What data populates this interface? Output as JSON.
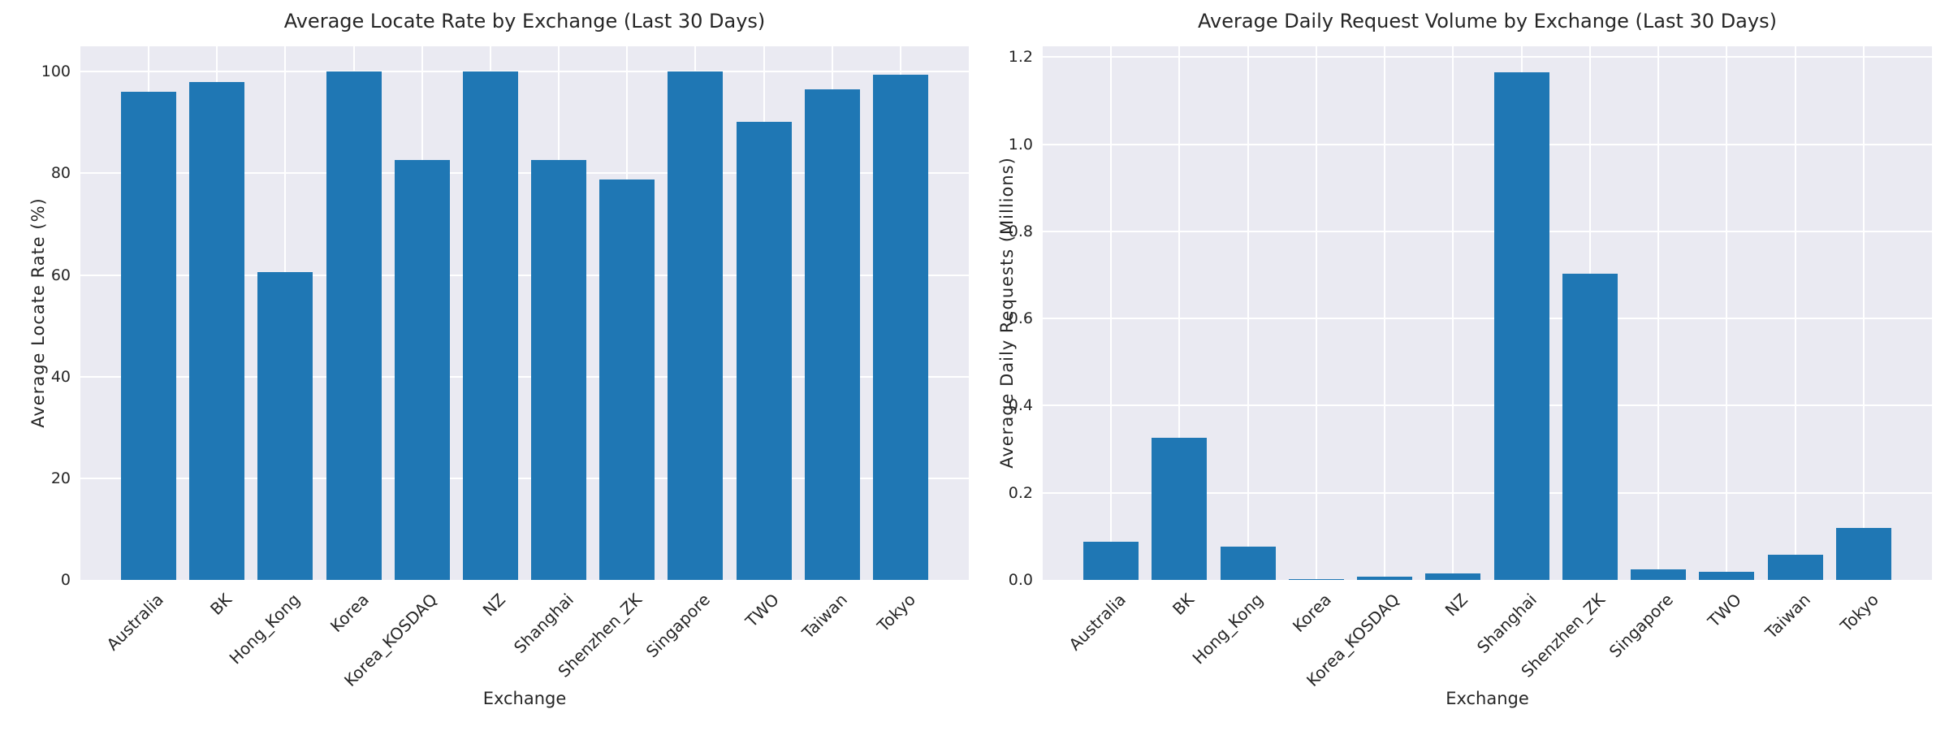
{
  "style": {
    "bar_color": "#1f77b4",
    "plot_background": "#eaeaf2",
    "grid_color": "#ffffff",
    "text_color": "#262626",
    "figure_background": "#ffffff"
  },
  "chart_data": [
    {
      "type": "bar",
      "title": "Average Locate Rate by Exchange (Last 30 Days)",
      "xlabel": "Exchange",
      "ylabel": "Average Locate Rate (%)",
      "categories": [
        "Australia",
        "BK",
        "Hong_Kong",
        "Korea",
        "Korea_KOSDAQ",
        "NZ",
        "Shanghai",
        "Shenzhen_ZK",
        "Singapore",
        "TWO",
        "Taiwan",
        "Tokyo"
      ],
      "values": [
        96.0,
        98.0,
        60.5,
        100.0,
        82.7,
        100.0,
        82.7,
        78.8,
        100.0,
        90.2,
        96.5,
        99.4
      ],
      "ylim": [
        0,
        105
      ],
      "yticks": [
        0,
        20,
        40,
        60,
        80,
        100
      ],
      "ytick_labels": [
        "0",
        "20",
        "40",
        "60",
        "80",
        "100"
      ],
      "grid": true,
      "legend": null
    },
    {
      "type": "bar",
      "title": "Average Daily Request Volume by Exchange (Last 30 Days)",
      "xlabel": "Exchange",
      "ylabel": "Average Daily Requests (Millions)",
      "categories": [
        "Australia",
        "BK",
        "Hong_Kong",
        "Korea",
        "Korea_KOSDAQ",
        "NZ",
        "Shanghai",
        "Shenzhen_ZK",
        "Singapore",
        "TWO",
        "Taiwan",
        "Tokyo"
      ],
      "values": [
        0.087,
        0.327,
        0.076,
        0.002,
        0.007,
        0.014,
        1.165,
        0.703,
        0.025,
        0.019,
        0.057,
        0.119
      ],
      "ylim": [
        0,
        1.225
      ],
      "yticks": [
        0.0,
        0.2,
        0.4,
        0.6,
        0.8,
        1.0,
        1.2
      ],
      "ytick_labels": [
        "0.0",
        "0.2",
        "0.4",
        "0.6",
        "0.8",
        "1.0",
        "1.2"
      ],
      "grid": true,
      "legend": null
    }
  ]
}
